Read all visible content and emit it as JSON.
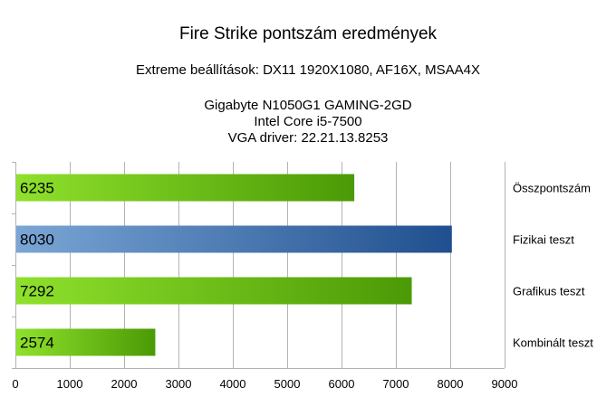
{
  "title": "Fire Strike pontszám eredmények",
  "subtitle": "Extreme beállítások: DX11 1920X1080, AF16X, MSAA4X",
  "system": {
    "gpu": "Gigabyte N1050G1 GAMING-2GD",
    "cpu": "Intel Core i5-7500",
    "driver": "VGA driver: 22.21.13.8253"
  },
  "colors": {
    "green_light": "#8fe12c",
    "green_dark": "#4b9a06",
    "blue_light": "#7aa6d6",
    "blue_dark": "#1f4f8e",
    "grid": "#b3b3b3"
  },
  "chart_data": {
    "type": "bar",
    "orientation": "horizontal",
    "categories": [
      "Összpontszám",
      "Fizikai teszt",
      "Grafikus teszt",
      "Kombinált teszt"
    ],
    "values": [
      6235,
      8030,
      7292,
      2574
    ],
    "bar_colors": [
      "green",
      "blue",
      "green",
      "green"
    ],
    "xlim": [
      0,
      9000
    ],
    "xticks": [
      0,
      1000,
      2000,
      3000,
      4000,
      5000,
      6000,
      7000,
      8000,
      9000
    ],
    "grid": true,
    "category_labels_position": "right"
  }
}
